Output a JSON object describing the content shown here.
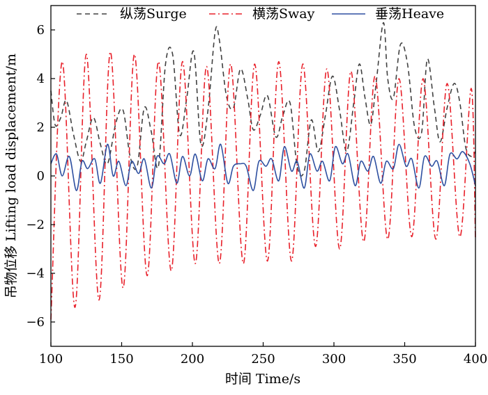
{
  "chart_data": {
    "type": "line",
    "title": "",
    "xlabel": "时间 Time/s",
    "ylabel": "吊物位移 Lifting load displacement/m",
    "xlim": [
      100,
      400
    ],
    "ylim": [
      -7,
      7
    ],
    "x_ticks": [
      100,
      150,
      200,
      250,
      300,
      350,
      400
    ],
    "y_ticks": [
      -6,
      -4,
      -2,
      0,
      2,
      4,
      6
    ],
    "x_tick_labels": [
      "100",
      "150",
      "200",
      "250",
      "300",
      "350",
      "400"
    ],
    "y_tick_labels": [
      "−6",
      "−4",
      "−2",
      "0",
      "2",
      "4",
      "6"
    ],
    "grid": false,
    "legend_position": "top",
    "series": [
      {
        "name": "纵荡Surge",
        "color": "#404040",
        "dash": "dashed",
        "x": [
          100,
          103,
          107,
          111,
          116,
          121,
          125,
          130,
          135,
          140,
          146,
          151,
          156,
          161,
          166,
          171,
          176,
          181,
          186,
          191,
          196,
          201,
          206,
          211,
          216,
          219,
          224,
          229,
          234,
          239,
          243,
          248,
          253,
          259,
          264,
          269,
          274,
          279,
          284,
          289,
          294,
          299,
          304,
          309,
          314,
          318,
          322,
          326,
          330,
          335,
          338,
          342,
          347,
          352,
          357,
          362,
          366,
          371,
          375,
          380,
          385,
          389,
          393,
          397,
          400
        ],
        "y": [
          3.5,
          2.1,
          2.4,
          3.1,
          1.7,
          0.6,
          1.4,
          2.4,
          1.3,
          0.5,
          2.2,
          2.7,
          0.8,
          0.4,
          2.8,
          1.8,
          0.4,
          4.6,
          5.0,
          1.7,
          3.2,
          5.1,
          1.3,
          2.7,
          5.9,
          5.6,
          3.3,
          2.8,
          4.4,
          3.2,
          1.9,
          2.5,
          3.3,
          1.6,
          2.5,
          3.0,
          0.4,
          0.2,
          2.3,
          1.0,
          2.5,
          4.1,
          2.7,
          1.0,
          3.0,
          4.6,
          3.2,
          2.1,
          3.9,
          6.3,
          4.0,
          3.2,
          5.4,
          4.6,
          2.0,
          1.8,
          4.8,
          2.8,
          1.4,
          2.8,
          3.8,
          3.0,
          1.2,
          0.8,
          1.0
        ]
      },
      {
        "name": "横荡Sway",
        "color": "#e8202a",
        "dash": "dashdot",
        "x": [
          100,
          108,
          117,
          125,
          134,
          142,
          151,
          159,
          168,
          176,
          185,
          193,
          202,
          210,
          219,
          227,
          236,
          244,
          253,
          261,
          270,
          278,
          287,
          295,
          304,
          312,
          321,
          329,
          338,
          346,
          355,
          363,
          372,
          380,
          389,
          397,
          400
        ],
        "y": [
          -5.9,
          4.7,
          -5.4,
          5.0,
          -5.1,
          5.1,
          -4.6,
          5.0,
          -4.1,
          4.7,
          -3.9,
          4.7,
          -3.6,
          4.5,
          -3.6,
          4.6,
          -3.6,
          4.6,
          -3.5,
          4.7,
          -3.5,
          4.6,
          -2.9,
          4.4,
          -3.0,
          4.3,
          -2.7,
          4.1,
          -2.6,
          4.0,
          -2.5,
          4.0,
          -2.6,
          3.8,
          -2.5,
          3.6,
          -2.6
        ]
      },
      {
        "name": "垂荡Heave",
        "color": "#2d4fa0",
        "dash": "solid",
        "x": [
          100,
          104,
          108,
          113,
          118,
          122,
          126,
          131,
          135,
          140,
          144,
          148,
          153,
          157,
          162,
          166,
          171,
          175,
          180,
          184,
          189,
          193,
          198,
          202,
          207,
          211,
          216,
          220,
          225,
          229,
          234,
          238,
          243,
          247,
          252,
          256,
          261,
          265,
          270,
          274,
          279,
          283,
          288,
          292,
          297,
          301,
          306,
          310,
          315,
          319,
          324,
          328,
          333,
          337,
          342,
          346,
          351,
          355,
          360,
          364,
          369,
          373,
          378,
          382,
          387,
          391,
          396,
          400
        ],
        "y": [
          0.5,
          0.9,
          0.0,
          0.8,
          -0.6,
          0.6,
          0.3,
          0.7,
          -0.3,
          1.3,
          0.0,
          0.6,
          -0.4,
          0.6,
          0.1,
          0.7,
          -0.5,
          0.8,
          0.5,
          0.9,
          -0.3,
          0.8,
          0.0,
          0.9,
          -0.2,
          0.7,
          0.3,
          1.3,
          -0.3,
          0.4,
          0.5,
          0.4,
          -0.6,
          0.6,
          0.4,
          0.7,
          -0.2,
          1.2,
          0.2,
          0.6,
          -0.5,
          0.9,
          0.2,
          0.6,
          -0.2,
          1.2,
          0.5,
          0.9,
          -0.4,
          0.6,
          0.2,
          0.8,
          -0.3,
          0.6,
          0.3,
          1.3,
          0.4,
          0.7,
          -0.5,
          0.8,
          0.4,
          0.6,
          -0.4,
          0.9,
          0.7,
          1.0,
          0.5,
          -0.4
        ]
      }
    ]
  }
}
